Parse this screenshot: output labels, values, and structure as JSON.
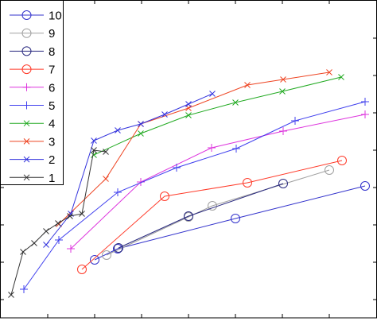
{
  "chart_data": {
    "type": "line",
    "title": "",
    "xlabel": "",
    "ylabel": "",
    "xlim": [
      0,
      474
    ],
    "ylim": [
      0,
      400
    ],
    "grid": false,
    "legend_position": "top-left",
    "series": [
      {
        "name": "10",
        "color": "#3333cc",
        "marker": "circle",
        "x": [
          119,
          148,
          296,
          459
        ],
        "y": [
          73,
          87,
          125,
          166
        ]
      },
      {
        "name": "9",
        "color": "#a0a0a0",
        "marker": "circle",
        "x": [
          134,
          237,
          267,
          414
        ],
        "y": [
          79,
          127,
          141,
          186
        ]
      },
      {
        "name": "8",
        "color": "#2a2a80",
        "marker": "circle",
        "x": [
          149,
          237,
          356
        ],
        "y": [
          88,
          128,
          169
        ]
      },
      {
        "name": "7",
        "color": "#ff3b2a",
        "marker": "circle",
        "x": [
          103,
          207,
          311,
          430
        ],
        "y": [
          61,
          153,
          170,
          198
        ]
      },
      {
        "name": "6",
        "color": "#dd33dd",
        "marker": "plus",
        "x": [
          89,
          177,
          266,
          356,
          459
        ],
        "y": [
          87,
          171,
          214,
          235,
          256
        ]
      },
      {
        "name": "5",
        "color": "#4040ee",
        "marker": "plus",
        "x": [
          30,
          74,
          148,
          222,
          297,
          371,
          459
        ],
        "y": [
          36,
          98,
          158,
          189,
          213,
          248,
          272
        ]
      },
      {
        "name": "4",
        "color": "#22aa22",
        "marker": "x",
        "x": [
          118,
          177,
          237,
          296,
          355,
          429
        ],
        "y": [
          205,
          232,
          255,
          271,
          285,
          303
        ]
      },
      {
        "name": "3",
        "color": "#ee4422",
        "marker": "x",
        "x": [
          74,
          133,
          177,
          237,
          311,
          356,
          414
        ],
        "y": [
          118,
          175,
          244,
          264,
          293,
          300,
          309
        ]
      },
      {
        "name": "2",
        "color": "#3333dd",
        "marker": "x",
        "x": [
          58,
          89,
          118,
          148,
          177,
          207,
          237,
          267
        ],
        "y": [
          92,
          131,
          223,
          236,
          244,
          256,
          269,
          282
        ]
      },
      {
        "name": "1",
        "color": "#333333",
        "marker": "x",
        "x": [
          14,
          29,
          43,
          58,
          73,
          88,
          103,
          118,
          133
        ],
        "y": [
          29,
          83,
          94,
          109,
          119,
          128,
          131,
          211,
          209
        ]
      }
    ]
  }
}
